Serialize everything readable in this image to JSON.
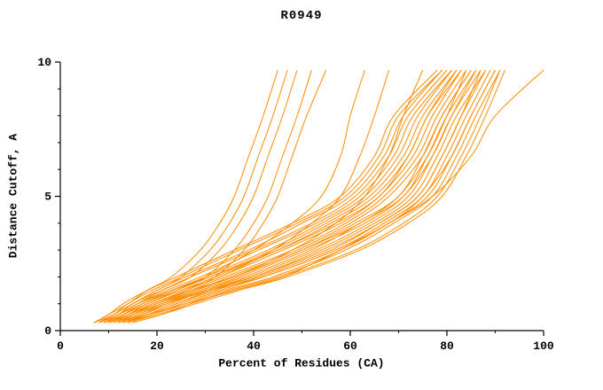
{
  "chart_data": {
    "type": "line",
    "title": "R0949",
    "xlabel": "Percent of Residues (CA)",
    "ylabel": "Distance Cutoff, A",
    "xlim": [
      0,
      100
    ],
    "ylim": [
      0,
      10
    ],
    "x_ticks": [
      0,
      20,
      40,
      60,
      80,
      100
    ],
    "y_ticks": [
      0,
      5,
      10
    ],
    "x_minor_ticks": [
      10,
      30,
      50,
      70,
      90
    ],
    "y_minor_ticks": [
      1,
      2,
      3,
      4,
      6,
      7,
      8,
      9
    ],
    "line_color": "#FF8C00",
    "axis_color": "#000000",
    "legend": "none",
    "grid": false,
    "y_anchors": [
      0.3,
      0.6,
      1.0,
      1.5,
      2.0,
      3.0,
      4.0,
      5.0,
      6.5,
      8.0,
      9.7
    ],
    "series_x": [
      [
        7,
        10,
        13,
        18,
        24,
        36,
        48,
        58,
        65,
        69,
        78
      ],
      [
        7,
        11,
        14,
        19,
        25,
        37,
        49,
        59,
        66,
        70,
        79
      ],
      [
        8,
        11,
        15,
        20,
        26,
        39,
        50,
        60,
        67,
        71,
        79
      ],
      [
        8,
        12,
        15,
        21,
        27,
        40,
        52,
        61,
        68,
        72,
        80
      ],
      [
        9,
        12,
        16,
        22,
        29,
        41,
        53,
        62,
        69,
        73,
        81
      ],
      [
        9,
        13,
        17,
        23,
        30,
        43,
        54,
        63,
        70,
        74,
        81
      ],
      [
        9,
        13,
        17,
        24,
        31,
        44,
        55,
        64,
        71,
        75,
        82
      ],
      [
        10,
        14,
        18,
        25,
        32,
        45,
        56,
        65,
        72,
        76,
        83
      ],
      [
        10,
        14,
        19,
        26,
        33,
        46,
        58,
        66,
        73,
        77,
        83
      ],
      [
        11,
        15,
        20,
        27,
        34,
        48,
        59,
        67,
        74,
        78,
        84
      ],
      [
        11,
        15,
        20,
        28,
        35,
        49,
        60,
        68,
        75,
        79,
        85
      ],
      [
        11,
        16,
        21,
        28,
        36,
        50,
        61,
        70,
        75,
        79,
        85
      ],
      [
        12,
        17,
        22,
        29,
        38,
        52,
        62,
        71,
        76,
        80,
        86
      ],
      [
        12,
        17,
        23,
        30,
        39,
        53,
        64,
        72,
        77,
        81,
        87
      ],
      [
        13,
        18,
        24,
        31,
        40,
        54,
        65,
        73,
        78,
        82,
        88
      ],
      [
        13,
        18,
        24,
        32,
        41,
        56,
        66,
        74,
        79,
        83,
        88
      ],
      [
        13,
        19,
        25,
        33,
        42,
        57,
        67,
        75,
        80,
        84,
        89
      ],
      [
        14,
        19,
        26,
        34,
        44,
        58,
        68,
        76,
        81,
        85,
        90
      ],
      [
        14,
        20,
        27,
        35,
        45,
        59,
        69,
        77,
        82,
        86,
        91
      ],
      [
        15,
        21,
        27,
        36,
        46,
        61,
        71,
        78,
        83,
        87,
        91
      ],
      [
        15,
        21,
        28,
        37,
        47,
        62,
        72,
        79,
        84,
        88,
        92
      ],
      [
        8,
        12,
        16,
        23,
        31,
        45,
        57,
        66,
        72,
        76,
        82
      ],
      [
        10,
        15,
        21,
        29,
        37,
        51,
        63,
        71,
        77,
        81,
        86
      ],
      [
        12,
        16,
        22,
        30,
        40,
        55,
        66,
        74,
        79,
        83,
        87
      ],
      [
        9,
        14,
        19,
        27,
        36,
        50,
        62,
        70,
        76,
        80,
        84
      ],
      [
        11,
        16,
        22,
        31,
        42,
        57,
        68,
        75,
        81,
        85,
        90
      ],
      [
        8,
        12,
        17,
        23,
        30,
        40,
        48,
        54,
        58,
        60,
        63
      ],
      [
        9,
        13,
        18,
        25,
        33,
        44,
        52,
        58,
        62,
        65,
        68
      ],
      [
        10,
        14,
        20,
        27,
        36,
        48,
        57,
        63,
        68,
        71,
        75
      ],
      [
        7,
        10,
        14,
        18,
        23,
        29,
        33,
        36,
        39,
        42,
        45
      ],
      [
        8,
        11,
        15,
        20,
        25,
        31,
        35,
        38,
        41,
        44,
        47
      ],
      [
        8,
        12,
        16,
        21,
        27,
        33,
        37,
        40,
        43,
        46,
        49
      ],
      [
        9,
        13,
        18,
        24,
        30,
        36,
        40,
        43,
        46,
        49,
        52
      ],
      [
        9,
        14,
        19,
        26,
        32,
        38,
        42,
        45,
        48,
        51,
        55
      ],
      [
        12,
        18,
        26,
        36,
        46,
        58,
        68,
        77,
        85,
        90,
        100
      ]
    ]
  }
}
